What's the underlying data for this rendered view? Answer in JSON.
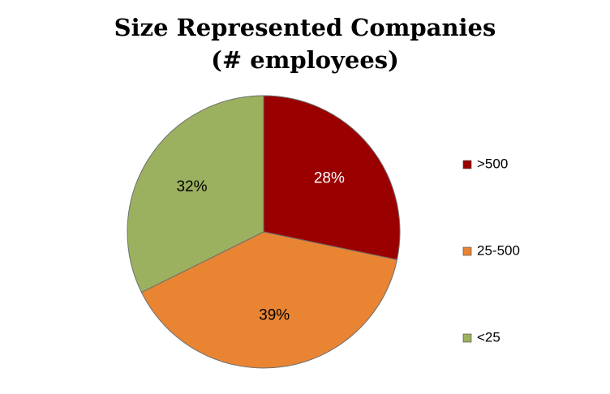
{
  "chart_data": {
    "type": "pie",
    "title": [
      "Size Represented Companies",
      "(# employees)"
    ],
    "slices": [
      {
        "label": ">500",
        "value": 28,
        "display": "28%",
        "color": "#9B0000",
        "label_color": "#ffffff"
      },
      {
        "label": "25-500",
        "value": 39,
        "display": "39%",
        "color": "#E98532",
        "label_color": "#000000"
      },
      {
        "label": "<25",
        "value": 32,
        "display": "32%",
        "color": "#9BB15F",
        "label_color": "#000000"
      }
    ],
    "start_angle_deg": 0,
    "direction": "clockwise",
    "legend": {
      "position": "right"
    }
  }
}
